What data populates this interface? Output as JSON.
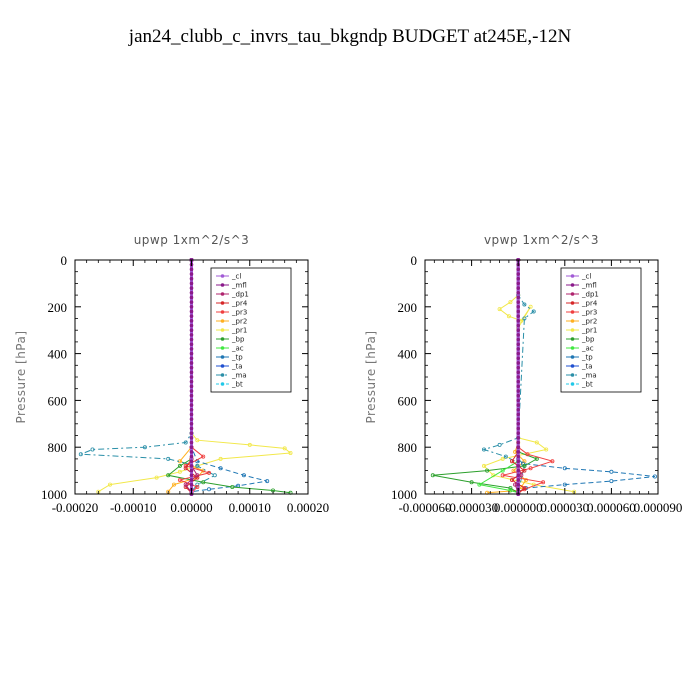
{
  "title": "jan24_clubb_c_invrs_tau_bkgndp  BUDGET at245E,-12N",
  "legend_entries": [
    "_cl",
    "_mfl",
    "_dp1",
    "_pr4",
    "_pr3",
    "_pr2",
    "_pr1",
    "_bp",
    "_ac",
    "_tp",
    "_ta",
    "_ma",
    "_bt"
  ],
  "series_colors": {
    "_cl": "#a25bd6",
    "_mfl": "#8b1a8b",
    "_dp1": "#b0246e",
    "_pr4": "#d62728",
    "_pr3": "#f04040",
    "_pr2": "#ffb020",
    "_pr1": "#f2e84a",
    "_bp": "#2ca02c",
    "_ac": "#40e840",
    "_tp": "#1f77b4",
    "_ta": "#2050d0",
    "_ma": "#2a8fa8",
    "_bt": "#20c8e8"
  },
  "chart_data": [
    {
      "type": "line",
      "title": "upwp   1xm^2/s^3",
      "ylabel": "Pressure [hPa]",
      "xlim": [
        -0.0002,
        0.0002
      ],
      "ylim": [
        1000,
        0
      ],
      "y_inverted": true,
      "xticks": [
        -0.0002,
        -0.0001,
        0.0,
        0.0001,
        0.0002
      ],
      "xtick_labels": [
        "-0.00020",
        "-0.00010",
        "0.00000",
        "0.00010",
        "0.00020"
      ],
      "yticks": [
        0,
        200,
        400,
        600,
        800,
        1000
      ],
      "ytick_labels": [
        "0",
        "200",
        "400",
        "600",
        "800",
        "1000"
      ],
      "legend_position": "top-right",
      "series": [
        {
          "name": "_pr1",
          "x": [
            0,
            0,
            1e-05,
            0.0001,
            0.00016,
            0.00017,
            5e-05,
            1e-05,
            -2e-05,
            -6e-05,
            -0.00014,
            -0.00016
          ],
          "y": [
            0,
            740,
            770,
            790,
            805,
            825,
            850,
            880,
            905,
            930,
            960,
            990
          ]
        },
        {
          "name": "_pr2",
          "x": [
            0,
            0,
            -2e-05,
            2e-05,
            1e-05,
            -3e-05,
            -4e-05
          ],
          "y": [
            0,
            800,
            860,
            900,
            930,
            960,
            990
          ]
        },
        {
          "name": "_ma",
          "x": [
            0,
            0,
            -1e-05,
            -8e-05,
            -0.00017,
            -0.00019,
            -4e-05,
            1e-05,
            4e-05,
            1e-05,
            0
          ],
          "y": [
            0,
            740,
            780,
            800,
            810,
            830,
            850,
            880,
            920,
            960,
            990
          ]
        },
        {
          "name": "_tp",
          "x": [
            0,
            0,
            1e-05,
            5e-05,
            9e-05,
            0.00013,
            8e-05,
            3e-05,
            0
          ],
          "y": [
            0,
            800,
            860,
            890,
            920,
            945,
            965,
            980,
            990
          ]
        },
        {
          "name": "_bp",
          "x": [
            0,
            0,
            -2e-05,
            -4e-05,
            2e-05,
            7e-05,
            0.00014,
            0.00017
          ],
          "y": [
            0,
            850,
            880,
            920,
            950,
            970,
            985,
            995
          ]
        },
        {
          "name": "_pr3",
          "x": [
            0,
            0,
            2e-05,
            -1e-05,
            3e-05,
            -2e-05,
            1e-05,
            0
          ],
          "y": [
            0,
            800,
            840,
            880,
            910,
            940,
            970,
            995
          ]
        },
        {
          "name": "_pr4",
          "x": [
            0,
            0,
            -1e-05,
            1e-05,
            -1e-05,
            0
          ],
          "y": [
            0,
            850,
            890,
            930,
            970,
            995
          ]
        },
        {
          "name": "_dp1",
          "x": [
            0,
            0,
            1e-05,
            -1e-05,
            0
          ],
          "y": [
            0,
            880,
            920,
            960,
            995
          ]
        },
        {
          "name": "_mfl",
          "x": [
            0,
            0
          ],
          "y": [
            0,
            1000
          ]
        },
        {
          "name": "_cl",
          "x": [
            0,
            0
          ],
          "y": [
            0,
            1000
          ]
        }
      ]
    },
    {
      "type": "line",
      "title": "vpwp   1xm^2/s^3",
      "ylabel": "Pressure [hPa]",
      "xlim": [
        -6e-05,
        9e-05
      ],
      "ylim": [
        1000,
        0
      ],
      "y_inverted": true,
      "xticks": [
        -6e-05,
        -3e-05,
        0.0,
        3e-05,
        6e-05,
        9e-05
      ],
      "xtick_labels": [
        "-0.000060",
        "-0.000030",
        "0.000000",
        "0.000030",
        "0.000060",
        "0.000090"
      ],
      "yticks": [
        0,
        200,
        400,
        600,
        800,
        1000
      ],
      "ytick_labels": [
        "0",
        "200",
        "400",
        "600",
        "800",
        "1000"
      ],
      "legend_position": "top-right",
      "series": [
        {
          "name": "_pr1",
          "x": [
            0,
            0,
            -5e-06,
            -1.2e-05,
            -6e-06,
            2e-06,
            8e-06,
            0,
            0,
            1.2e-05,
            1.8e-05,
            -1e-05,
            -2.2e-05,
            -1.6e-05,
            1e-05,
            3.6e-05
          ],
          "y": [
            0,
            150,
            180,
            210,
            240,
            260,
            200,
            290,
            760,
            780,
            810,
            850,
            880,
            920,
            960,
            990
          ]
        },
        {
          "name": "_pr2",
          "x": [
            0,
            0,
            -2e-06,
            4e-06,
            -3e-06,
            5e-06,
            2e-06,
            0,
            -2e-05
          ],
          "y": [
            0,
            780,
            820,
            860,
            900,
            940,
            970,
            985,
            995
          ]
        },
        {
          "name": "_ma",
          "x": [
            0,
            0,
            4e-06,
            1e-05,
            4e-06,
            0,
            -1.2e-05,
            -2.2e-05,
            -8e-06,
            4e-06,
            0
          ],
          "y": [
            0,
            150,
            190,
            220,
            250,
            760,
            790,
            810,
            840,
            880,
            990
          ]
        },
        {
          "name": "_tp",
          "x": [
            0,
            0,
            3e-06,
            3e-05,
            6e-05,
            8.8e-05,
            6e-05,
            3e-05,
            5e-06,
            0
          ],
          "y": [
            0,
            850,
            870,
            890,
            905,
            925,
            945,
            960,
            975,
            990
          ]
        },
        {
          "name": "_bp",
          "x": [
            0,
            0,
            1.2e-05,
            4e-06,
            -2e-05,
            -5.5e-05,
            -3e-05,
            -5e-06,
            0
          ],
          "y": [
            0,
            820,
            850,
            880,
            900,
            920,
            950,
            975,
            995
          ]
        },
        {
          "name": "_ac",
          "x": [
            0,
            0,
            -1e-05,
            -2.5e-05,
            -5e-06,
            0
          ],
          "y": [
            0,
            860,
            900,
            960,
            985,
            995
          ]
        },
        {
          "name": "_pr3",
          "x": [
            0,
            0,
            6e-06,
            2.2e-05,
            8e-06,
            -1e-05,
            1.6e-05,
            4e-06,
            0
          ],
          "y": [
            0,
            800,
            830,
            860,
            890,
            920,
            950,
            980,
            995
          ]
        },
        {
          "name": "_pr4",
          "x": [
            0,
            0,
            -4e-06,
            4e-06,
            -4e-06,
            4e-06,
            0
          ],
          "y": [
            0,
            820,
            860,
            900,
            940,
            975,
            995
          ]
        },
        {
          "name": "_dp1",
          "x": [
            0,
            0,
            2e-06,
            -2e-06,
            0
          ],
          "y": [
            0,
            880,
            920,
            960,
            995
          ]
        },
        {
          "name": "_mfl",
          "x": [
            0,
            0
          ],
          "y": [
            0,
            1000
          ]
        },
        {
          "name": "_cl",
          "x": [
            0,
            0
          ],
          "y": [
            0,
            1000
          ]
        }
      ]
    }
  ]
}
